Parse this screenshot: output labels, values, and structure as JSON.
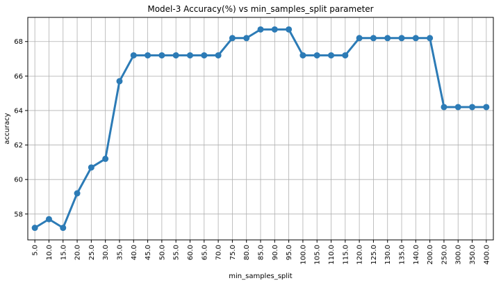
{
  "chart_data": {
    "type": "line",
    "title": "Model-3 Accuracy(%) vs min_samples_split parameter",
    "xlabel": "min_samples_split",
    "ylabel": "accuracy",
    "categories": [
      "5.0",
      "10.0",
      "15.0",
      "20.0",
      "25.0",
      "30.0",
      "35.0",
      "40.0",
      "45.0",
      "50.0",
      "55.0",
      "60.0",
      "65.0",
      "70.0",
      "75.0",
      "80.0",
      "85.0",
      "90.0",
      "95.0",
      "100.0",
      "105.0",
      "110.0",
      "115.0",
      "120.0",
      "125.0",
      "130.0",
      "135.0",
      "140.0",
      "200.0",
      "250.0",
      "300.0",
      "350.0",
      "400.0"
    ],
    "series": [
      {
        "values": [
          57.2,
          57.7,
          57.2,
          59.2,
          60.7,
          61.2,
          65.7,
          67.2,
          67.2,
          67.2,
          67.2,
          67.2,
          67.2,
          67.2,
          68.2,
          68.2,
          68.7,
          68.7,
          68.7,
          67.2,
          67.2,
          67.2,
          67.2,
          68.2,
          68.2,
          68.2,
          68.2,
          68.2,
          68.2,
          64.2,
          64.2,
          64.2,
          64.2
        ],
        "color": "#2c7bb6"
      }
    ],
    "yticks": [
      58,
      60,
      62,
      64,
      66,
      68
    ],
    "ylim": [
      56.5,
      69.4
    ],
    "grid": true,
    "legend": "none"
  }
}
